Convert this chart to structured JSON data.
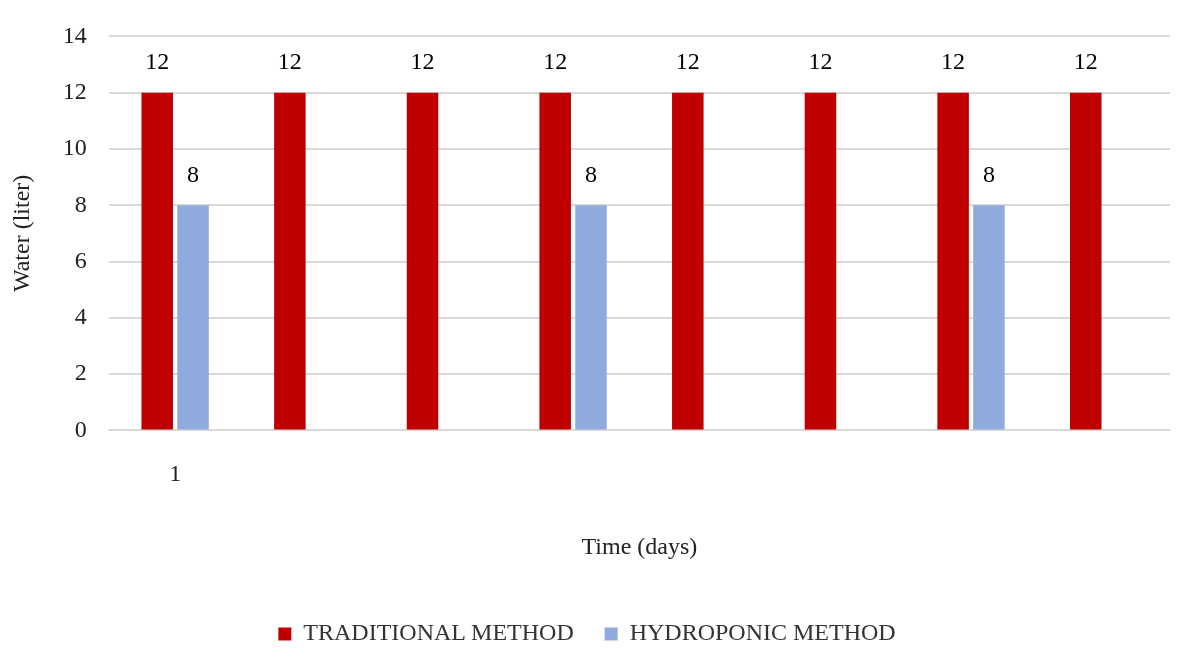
{
  "chart_data": {
    "type": "bar",
    "xlabel": "Time (days)",
    "ylabel": "Water (liter)",
    "categories": [
      "1",
      null,
      null,
      null,
      null,
      null,
      null,
      null
    ],
    "series": [
      {
        "name": "TRADITIONAL METHOD",
        "color": "#c00000",
        "values": [
          12,
          12,
          12,
          12,
          12,
          12,
          12,
          12
        ]
      },
      {
        "name": "HYDROPONIC METHOD",
        "color": "#8faadc",
        "values": [
          8,
          null,
          null,
          8,
          null,
          null,
          8,
          null
        ]
      }
    ],
    "ylim": [
      0,
      14
    ],
    "yticks": [
      0,
      2,
      4,
      6,
      8,
      10,
      12,
      14
    ],
    "grid": "y",
    "legend": "bottom",
    "data_labels": true
  }
}
